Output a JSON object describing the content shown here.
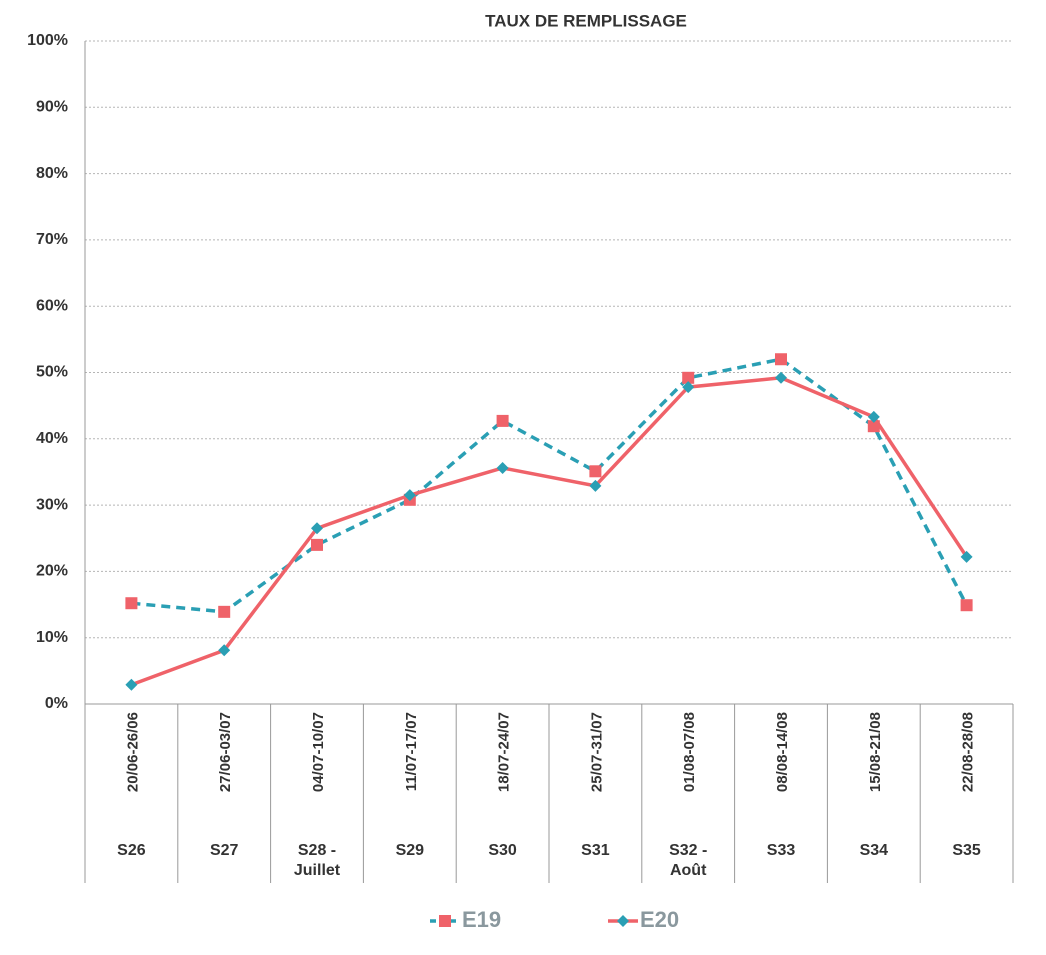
{
  "chart_data": {
    "type": "line",
    "title": "TAUX DE REMPLISSAGE",
    "categories": [
      "20/06-26/06",
      "27/06-03/07",
      "04/07-10/07",
      "11/07-17/07",
      "18/07-24/07",
      "25/07-31/07",
      "01/08-07/08",
      "08/08-14/08",
      "15/08-21/08",
      "22/08-28/08"
    ],
    "groups": [
      "S26",
      "S27",
      "S28 - Juillet",
      "S29",
      "S30",
      "S31",
      "S32 - Août",
      "S33",
      "S34",
      "S35"
    ],
    "series": [
      {
        "name": "E19",
        "color": "#2a9fb4",
        "marker_color": "#ef6269",
        "line_style": "dashed",
        "marker": "square",
        "values": [
          15.2,
          13.9,
          24.0,
          30.8,
          42.7,
          35.1,
          49.2,
          52.0,
          41.9,
          14.9
        ]
      },
      {
        "name": "E20",
        "color": "#ef6269",
        "marker_color": "#2a9fb4",
        "line_style": "solid",
        "marker": "diamond",
        "values": [
          2.9,
          8.1,
          26.5,
          31.5,
          35.6,
          32.9,
          47.8,
          49.2,
          43.3,
          22.2
        ]
      }
    ],
    "ylim": [
      0,
      100
    ],
    "yticks": [
      {
        "value": 0,
        "label": "0%"
      },
      {
        "value": 10,
        "label": "10%"
      },
      {
        "value": 20,
        "label": "20%"
      },
      {
        "value": 30,
        "label": "30%"
      },
      {
        "value": 40,
        "label": "40%"
      },
      {
        "value": 50,
        "label": "50%"
      },
      {
        "value": 60,
        "label": "60%"
      },
      {
        "value": 70,
        "label": "70%"
      },
      {
        "value": 80,
        "label": "80%"
      },
      {
        "value": 90,
        "label": "90%"
      },
      {
        "value": 100,
        "label": "100%"
      }
    ],
    "grid": true,
    "legend": "bottom"
  }
}
